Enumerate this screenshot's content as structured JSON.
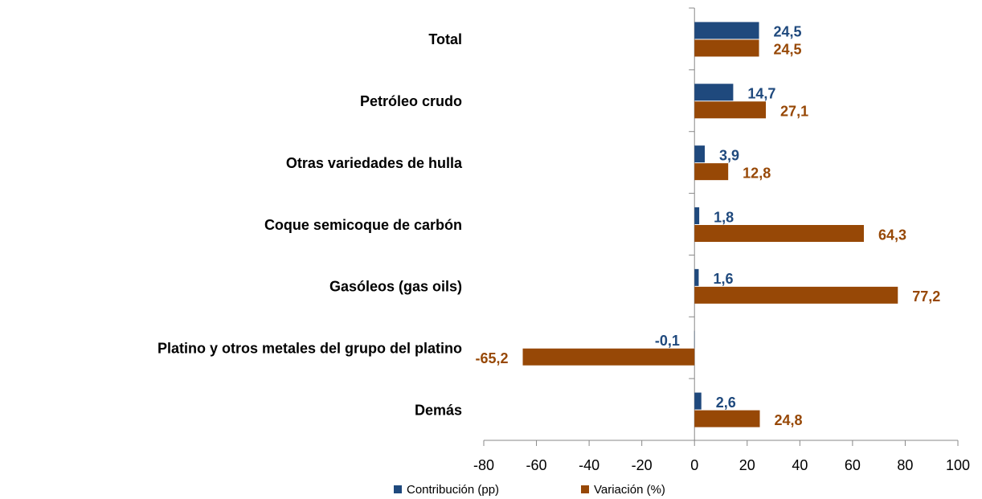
{
  "chart_data": {
    "type": "bar",
    "orientation": "horizontal",
    "categories": [
      "Total",
      "Petróleo crudo",
      "Otras variedades de hulla",
      "Coque semicoque de carbón",
      "Gasóleos (gas oils)",
      "Platino y otros metales del grupo del platino",
      "Demás"
    ],
    "series": [
      {
        "name": "Contribución (pp)",
        "color": "#1f497d",
        "values": [
          24.5,
          14.7,
          3.9,
          1.8,
          1.6,
          -0.1,
          2.6
        ],
        "value_labels": [
          "24,5",
          "14,7",
          "3,9",
          "1,8",
          "1,6",
          "-0,1",
          "2,6"
        ]
      },
      {
        "name": "Variación (%)",
        "color": "#974806",
        "values": [
          24.5,
          27.1,
          12.8,
          64.3,
          77.2,
          -65.2,
          24.8
        ],
        "value_labels": [
          "24,5",
          "27,1",
          "12,8",
          "64,3",
          "77,2",
          "-65,2",
          "24,8"
        ]
      }
    ],
    "xlim": [
      -80,
      100
    ],
    "xticks": [
      -80,
      -60,
      -40,
      -20,
      0,
      20,
      40,
      60,
      80,
      100
    ],
    "grid": false,
    "legend": "bottom"
  }
}
